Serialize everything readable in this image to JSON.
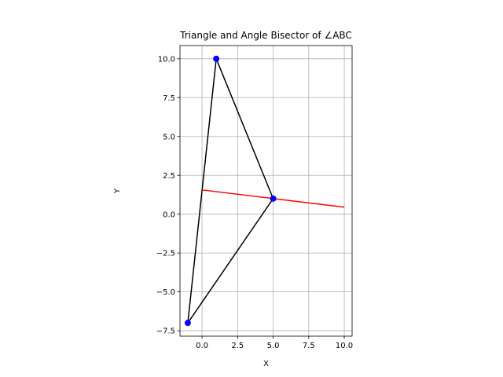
{
  "chart_data": {
    "type": "line",
    "title": "Triangle and Angle Bisector of ∠ABC",
    "xlabel": "X",
    "ylabel": "Y",
    "xlim": [
      -1.55,
      10.55
    ],
    "ylim": [
      -7.85,
      10.85
    ],
    "x_ticks": [
      0.0,
      2.5,
      5.0,
      7.5,
      10.0
    ],
    "x_tick_labels": [
      "0.0",
      "2.5",
      "5.0",
      "7.5",
      "10.0"
    ],
    "y_ticks": [
      -7.5,
      -5.0,
      -2.5,
      0.0,
      2.5,
      5.0,
      7.5,
      10.0
    ],
    "y_tick_labels": [
      "−7.5",
      "−5.0",
      "−2.5",
      "0.0",
      "2.5",
      "5.0",
      "7.5",
      "10.0"
    ],
    "grid": true,
    "aspect": "equal",
    "points": [
      {
        "x": 1,
        "y": 10
      },
      {
        "x": 5,
        "y": 1
      },
      {
        "x": -1,
        "y": -7
      }
    ],
    "series": [
      {
        "color": "#000000",
        "x": [
          1,
          5,
          -1,
          1
        ],
        "y": [
          10,
          1,
          -7,
          10
        ]
      },
      {
        "color": "#ff0000",
        "x": [
          0,
          10
        ],
        "y": [
          1.56,
          0.45
        ]
      }
    ],
    "colors": {
      "points": "#0000ff",
      "grid": "#b0b0b0"
    }
  }
}
